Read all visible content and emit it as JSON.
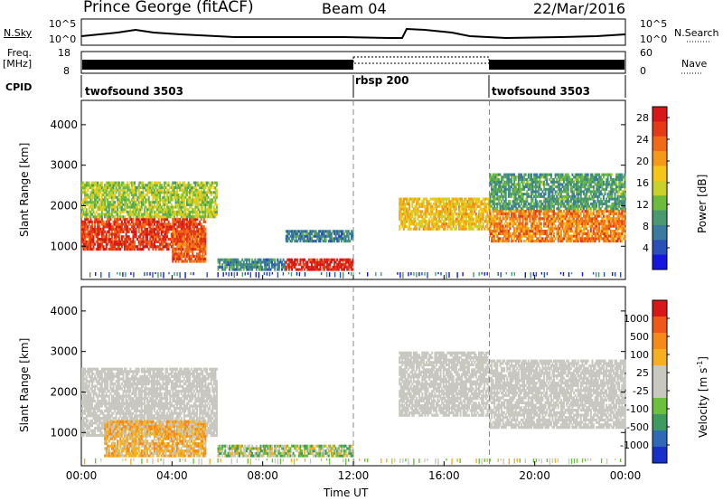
{
  "header": {
    "station": "Prince George (fitACF)",
    "beam": "Beam 04",
    "date": "22/Mar/2016"
  },
  "top_panels": {
    "nsky_label": "N.Sky",
    "nsearch_label": "N.Search",
    "nsky_ticks": [
      "10^5",
      "10^0"
    ],
    "nsearch_ticks": [
      "10^5",
      "10^0"
    ],
    "freq_label_1": "Freq.",
    "freq_label_2": "[MHz]",
    "freq_ticks": [
      "18",
      "8"
    ],
    "nave_label": "Nave",
    "nave_ticks": [
      "60",
      "0"
    ],
    "cpid_label": "CPID",
    "cpid_segments": [
      {
        "name": "twofsound 3503",
        "start_h": 0,
        "end_h": 12
      },
      {
        "name": "rbsp 200",
        "start_h": 12,
        "end_h": 18
      },
      {
        "name": "twofsound 3503",
        "start_h": 18,
        "end_h": 24
      }
    ]
  },
  "chart_data": [
    {
      "type": "heatmap",
      "title": "",
      "xlabel": "Time UT",
      "ylabel": "Slant Range [km]",
      "xlim": [
        0,
        24
      ],
      "ylim": [
        180,
        4600
      ],
      "x_ticks": [
        "00:00",
        "04:00",
        "08:00",
        "12:00",
        "16:00",
        "20:00",
        "00:00"
      ],
      "y_ticks": [
        "1000",
        "2000",
        "3000",
        "4000"
      ],
      "colorbar_label": "Power [dB]",
      "colorbar_ticks": [
        "4",
        "8",
        "12",
        "16",
        "20",
        "24",
        "28"
      ],
      "colorbar_range": [
        0,
        30
      ],
      "colorbar_colors": [
        "#1616e0",
        "#2a4fb8",
        "#3d7aa0",
        "#4a9a70",
        "#6cbb3c",
        "#c9d22a",
        "#f5c518",
        "#f59a18",
        "#f06a18",
        "#e53a18",
        "#d81818"
      ],
      "regions": [
        {
          "t0": 0.0,
          "t1": 5.5,
          "r0": 900,
          "r1": 1700,
          "v": 26
        },
        {
          "t0": 0.0,
          "t1": 6.0,
          "r0": 1700,
          "r1": 2600,
          "v": 14
        },
        {
          "t0": 4.0,
          "t1": 5.5,
          "r0": 600,
          "r1": 1400,
          "v": 24
        },
        {
          "t0": 6.0,
          "t1": 9.0,
          "r0": 400,
          "r1": 700,
          "v": 8
        },
        {
          "t0": 9.0,
          "t1": 12.0,
          "r0": 400,
          "r1": 700,
          "v": 28
        },
        {
          "t0": 9.0,
          "t1": 12.0,
          "r0": 1100,
          "r1": 1400,
          "v": 8
        },
        {
          "t0": 14.0,
          "t1": 18.0,
          "r0": 1400,
          "r1": 2200,
          "v": 18
        },
        {
          "t0": 18.0,
          "t1": 24.0,
          "r0": 1100,
          "r1": 1900,
          "v": 22
        },
        {
          "t0": 18.0,
          "t1": 24.0,
          "r0": 1900,
          "r1": 2800,
          "v": 10
        }
      ]
    },
    {
      "type": "heatmap",
      "title": "",
      "xlabel": "Time UT",
      "ylabel": "Slant Range [km]",
      "xlim": [
        0,
        24
      ],
      "ylim": [
        180,
        4600
      ],
      "x_ticks": [
        "00:00",
        "04:00",
        "08:00",
        "12:00",
        "16:00",
        "20:00",
        "00:00"
      ],
      "y_ticks": [
        "1000",
        "2000",
        "3000",
        "4000"
      ],
      "colorbar_label": "Velocity [m s^-1]",
      "colorbar_ticks": [
        "1000",
        "500",
        "100",
        "25",
        "-25",
        "-100",
        "-500",
        "-1000"
      ],
      "colorbar_colors": [
        "#1630c8",
        "#2f6ab8",
        "#3f9a60",
        "#6cc03c",
        "#c8c8c0",
        "#c8c8c0",
        "#f5b020",
        "#f58a18",
        "#f05818",
        "#d81818"
      ],
      "regions": [
        {
          "t0": 0.0,
          "t1": 6.0,
          "r0": 900,
          "r1": 2600,
          "v": "ground"
        },
        {
          "t0": 1.0,
          "t1": 5.5,
          "r0": 400,
          "r1": 1300,
          "v": -100
        },
        {
          "t0": 6.0,
          "t1": 9.0,
          "r0": 400,
          "r1": 700,
          "v": 100
        },
        {
          "t0": 9.0,
          "t1": 12.0,
          "r0": 400,
          "r1": 700,
          "v": 100
        },
        {
          "t0": 14.0,
          "t1": 18.0,
          "r0": 1400,
          "r1": 3000,
          "v": "ground"
        },
        {
          "t0": 18.0,
          "t1": 24.0,
          "r0": 1100,
          "r1": 2800,
          "v": "ground"
        }
      ]
    }
  ]
}
